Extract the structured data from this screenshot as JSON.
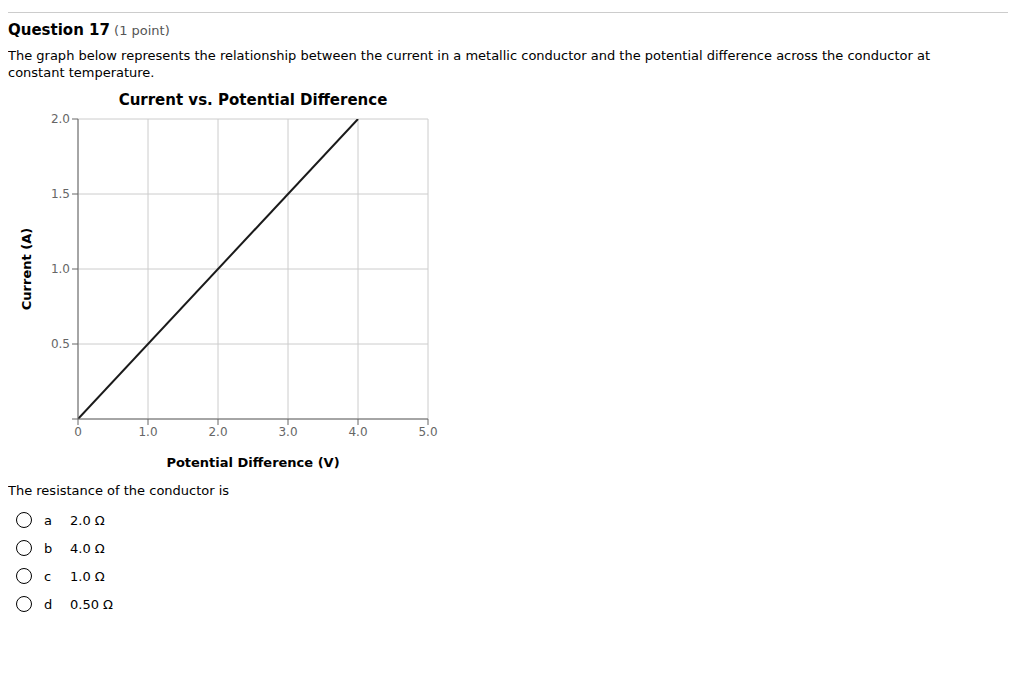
{
  "chart_data": {
    "type": "line",
    "title": "Current vs. Potential Difference",
    "xlabel": "Potential Difference (V)",
    "ylabel": "Current (A)",
    "x": [
      0,
      4.0
    ],
    "series": [
      {
        "name": "Current",
        "color": "#1a1a1a",
        "values": [
          0,
          2.0
        ]
      }
    ],
    "xlim": [
      0,
      5.0
    ],
    "ylim": [
      0,
      2.0
    ],
    "xticks": [
      0,
      {
        "value": 1.0,
        "label": "1.0"
      },
      {
        "value": 2.0,
        "label": "2.0"
      },
      {
        "value": 3.0,
        "label": "3.0"
      },
      {
        "value": 4.0,
        "label": "4.0"
      },
      {
        "value": 5.0,
        "label": "5.0"
      }
    ],
    "yticks": [
      {
        "value": 0,
        "label": ""
      },
      0.5,
      {
        "value": 1.0,
        "label": "1.0"
      },
      1.5,
      {
        "value": 2.0,
        "label": "2.0"
      }
    ],
    "grid": true,
    "question": "Question 17",
    "points": "(1 point)",
    "description": [
      "The graph below represents the relationship between the current in a metallic conductor and the potential difference across the conductor at",
      "constant temperature."
    ],
    "prompt": "The resistance of the conductor is",
    "choices": [
      {
        "label": "a",
        "text": "2.0 Ω"
      },
      {
        "label": "b",
        "text": "4.0 Ω"
      },
      {
        "label": "c",
        "text": "1.0 Ω"
      },
      {
        "label": "d",
        "text": "0.50 Ω"
      }
    ]
  }
}
